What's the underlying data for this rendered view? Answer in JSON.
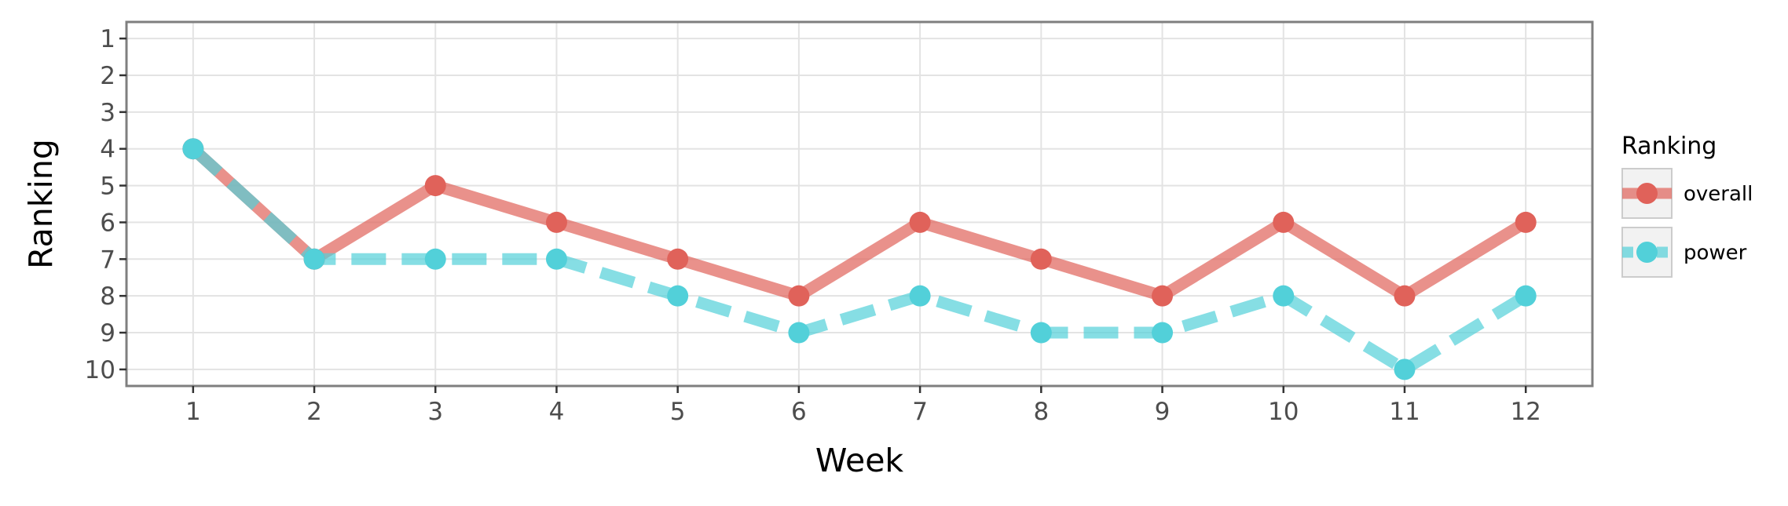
{
  "chart_data": {
    "type": "line",
    "title": "",
    "xlabel": "Week",
    "ylabel": "Ranking",
    "x": [
      1,
      2,
      3,
      4,
      5,
      6,
      7,
      8,
      9,
      10,
      11,
      12
    ],
    "x_ticks": [
      "1",
      "2",
      "3",
      "4",
      "5",
      "6",
      "7",
      "8",
      "9",
      "10",
      "11",
      "12"
    ],
    "y_ticks": [
      "1",
      "2",
      "3",
      "4",
      "5",
      "6",
      "7",
      "8",
      "9",
      "10"
    ],
    "xlim": [
      0.45,
      12.55
    ],
    "ylim": [
      0.55,
      10.45
    ],
    "y_reversed": true,
    "grid": true,
    "legend": {
      "title": "Ranking",
      "placement": "right"
    },
    "series": [
      {
        "name": "overall",
        "values": [
          4,
          7,
          5,
          6,
          7,
          8,
          6,
          7,
          8,
          6,
          8,
          6
        ],
        "color": "#e0625a",
        "line_style": "solid"
      },
      {
        "name": "power",
        "values": [
          4,
          7,
          7,
          7,
          8,
          9,
          8,
          9,
          9,
          8,
          10,
          8
        ],
        "color": "#52d0d9",
        "line_style": "dashed"
      }
    ]
  }
}
